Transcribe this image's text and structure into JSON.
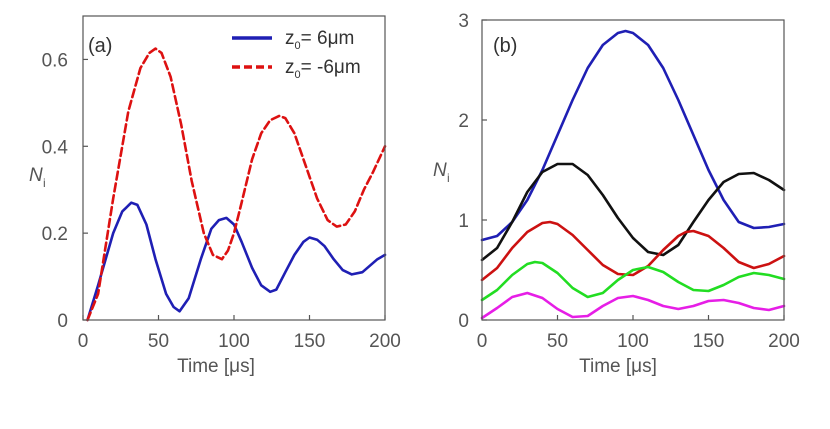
{
  "chart_data": [
    {
      "type": "line",
      "panel_label": "(a)",
      "xlabel": "Time [μs]",
      "ylabel": "N",
      "ylabel_sub": "i",
      "xlim": [
        0,
        200
      ],
      "ylim": [
        0,
        0.7
      ],
      "xticks": [
        0,
        50,
        100,
        150,
        200
      ],
      "yticks": [
        0,
        0.2,
        0.4,
        0.6
      ],
      "ytick_labels": [
        "0",
        "0.2",
        "0.4",
        "0.6"
      ],
      "legend_position": "top-right",
      "series": [
        {
          "name": "z₀= 6μm",
          "name_main": "z",
          "name_sub": "0",
          "name_rest": "= 6μm",
          "color": "#1f1fb4",
          "dash": "solid",
          "x": [
            3,
            10,
            20,
            26,
            32,
            36,
            42,
            48,
            55,
            60,
            64,
            70,
            78,
            85,
            90,
            95,
            100,
            105,
            112,
            118,
            124,
            128,
            134,
            140,
            146,
            150,
            155,
            160,
            166,
            172,
            178,
            185,
            190,
            195,
            200
          ],
          "y": [
            0,
            0.08,
            0.2,
            0.25,
            0.27,
            0.265,
            0.22,
            0.14,
            0.06,
            0.03,
            0.02,
            0.05,
            0.14,
            0.21,
            0.23,
            0.235,
            0.22,
            0.18,
            0.12,
            0.08,
            0.065,
            0.07,
            0.11,
            0.15,
            0.18,
            0.19,
            0.185,
            0.17,
            0.14,
            0.115,
            0.105,
            0.11,
            0.125,
            0.14,
            0.15
          ]
        },
        {
          "name": "z₀= -6μm",
          "name_main": "z",
          "name_sub": "0",
          "name_rest": "= -6μm",
          "color": "#dd1111",
          "dash": "dashed",
          "x": [
            3,
            10,
            20,
            30,
            38,
            44,
            48,
            52,
            58,
            65,
            72,
            80,
            86,
            92,
            96,
            100,
            105,
            112,
            118,
            124,
            130,
            134,
            140,
            148,
            155,
            162,
            168,
            174,
            180,
            186,
            192,
            200
          ],
          "y": [
            0,
            0.06,
            0.28,
            0.48,
            0.58,
            0.615,
            0.625,
            0.615,
            0.56,
            0.45,
            0.32,
            0.2,
            0.15,
            0.14,
            0.16,
            0.2,
            0.27,
            0.37,
            0.43,
            0.46,
            0.47,
            0.465,
            0.43,
            0.35,
            0.28,
            0.23,
            0.215,
            0.22,
            0.25,
            0.3,
            0.34,
            0.4
          ]
        }
      ]
    },
    {
      "type": "line",
      "panel_label": "(b)",
      "xlabel": "Time [μs]",
      "ylabel": "N",
      "ylabel_sub": "i",
      "xlim": [
        0,
        200
      ],
      "ylim": [
        0,
        3
      ],
      "xticks": [
        0,
        50,
        100,
        150,
        200
      ],
      "yticks": [
        0,
        1,
        2,
        3
      ],
      "ytick_labels": [
        "0",
        "1",
        "2",
        "3"
      ],
      "series": [
        {
          "color": "#1f1fb4",
          "x": [
            0,
            10,
            20,
            30,
            40,
            50,
            60,
            70,
            80,
            90,
            95,
            100,
            110,
            120,
            130,
            140,
            150,
            160,
            170,
            180,
            190,
            200
          ],
          "y": [
            0.8,
            0.84,
            0.98,
            1.2,
            1.5,
            1.85,
            2.2,
            2.52,
            2.75,
            2.87,
            2.89,
            2.87,
            2.75,
            2.52,
            2.2,
            1.85,
            1.5,
            1.2,
            0.98,
            0.92,
            0.93,
            0.96
          ]
        },
        {
          "color": "#111111",
          "x": [
            0,
            10,
            20,
            30,
            40,
            50,
            60,
            70,
            80,
            90,
            100,
            110,
            120,
            130,
            140,
            150,
            160,
            170,
            180,
            190,
            200
          ],
          "y": [
            0.6,
            0.72,
            0.98,
            1.28,
            1.48,
            1.56,
            1.56,
            1.45,
            1.25,
            1.02,
            0.82,
            0.68,
            0.65,
            0.75,
            0.98,
            1.2,
            1.38,
            1.46,
            1.47,
            1.4,
            1.3
          ]
        },
        {
          "color": "#cc1111",
          "x": [
            0,
            10,
            20,
            30,
            40,
            45,
            50,
            60,
            70,
            80,
            90,
            100,
            110,
            120,
            130,
            135,
            140,
            150,
            160,
            170,
            180,
            190,
            200
          ],
          "y": [
            0.4,
            0.52,
            0.72,
            0.88,
            0.97,
            0.98,
            0.96,
            0.85,
            0.7,
            0.55,
            0.46,
            0.45,
            0.54,
            0.7,
            0.84,
            0.88,
            0.89,
            0.84,
            0.72,
            0.58,
            0.52,
            0.56,
            0.64
          ]
        },
        {
          "color": "#22dd22",
          "x": [
            0,
            10,
            20,
            30,
            35,
            40,
            50,
            60,
            70,
            80,
            90,
            100,
            110,
            120,
            130,
            140,
            150,
            160,
            170,
            180,
            190,
            200
          ],
          "y": [
            0.2,
            0.3,
            0.45,
            0.56,
            0.58,
            0.57,
            0.47,
            0.32,
            0.23,
            0.27,
            0.4,
            0.5,
            0.53,
            0.48,
            0.38,
            0.3,
            0.29,
            0.35,
            0.43,
            0.47,
            0.45,
            0.41
          ]
        },
        {
          "color": "#e61ee6",
          "x": [
            0,
            10,
            20,
            30,
            40,
            50,
            60,
            70,
            80,
            90,
            100,
            110,
            120,
            130,
            140,
            150,
            160,
            170,
            180,
            190,
            200
          ],
          "y": [
            0.02,
            0.12,
            0.23,
            0.27,
            0.22,
            0.11,
            0.03,
            0.04,
            0.14,
            0.22,
            0.24,
            0.2,
            0.14,
            0.11,
            0.14,
            0.19,
            0.2,
            0.17,
            0.12,
            0.1,
            0.14
          ]
        }
      ]
    }
  ]
}
